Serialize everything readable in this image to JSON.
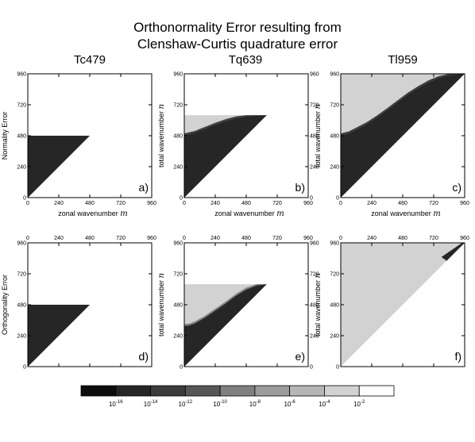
{
  "title_line1": "Orthonormality Error resulting from",
  "title_line2": "Clenshaw-Curtis quadrature error",
  "colors": {
    "cb": [
      "#0d0d0d",
      "#262626",
      "#3c3c3c",
      "#575757",
      "#808080",
      "#9c9c9c",
      "#b6b6b6",
      "#d2d2d2",
      "#ffffff"
    ]
  },
  "colorbar": {
    "labels": [
      {
        "base": "10",
        "exp": "-16"
      },
      {
        "base": "10",
        "exp": "-14"
      },
      {
        "base": "10",
        "exp": "-12"
      },
      {
        "base": "10",
        "exp": "-10"
      },
      {
        "base": "10",
        "exp": "-8"
      },
      {
        "base": "10",
        "exp": "-6"
      },
      {
        "base": "10",
        "exp": "-4"
      },
      {
        "base": "10",
        "exp": "-2"
      }
    ]
  },
  "chart_data": {
    "type": "heatmap",
    "title": "Orthonormality Error resulting from Clenshaw-Curtis quadrature error",
    "columns": [
      "Tc479",
      "Tq639",
      "Tl959"
    ],
    "rows": [
      "Normality Error",
      "Orthogonality Error"
    ],
    "x_label_text": "zonal wavenumber",
    "x_label_symbol": "m",
    "y_label_text": "total wavenumber",
    "y_label_symbol": "n",
    "xlim": [
      0,
      960
    ],
    "ylim": [
      0,
      960
    ],
    "ticks": [
      "0",
      "240",
      "480",
      "720",
      "960"
    ],
    "tick_values": [
      0,
      240,
      480,
      720,
      960
    ],
    "panels": [
      {
        "id": "a",
        "label": "a)",
        "truncation": 479,
        "boundary": [
          [
            0,
            479
          ],
          [
            479,
            479
          ]
        ],
        "upper_level": 1,
        "lower_level": 1,
        "mixed_level": 1
      },
      {
        "id": "b",
        "label": "b)",
        "truncation": 639,
        "boundary": [
          [
            0,
            484
          ],
          [
            80,
            502
          ],
          [
            160,
            534
          ],
          [
            240,
            566
          ],
          [
            320,
            594
          ],
          [
            400,
            615
          ],
          [
            480,
            630
          ],
          [
            560,
            638
          ],
          [
            639,
            639
          ]
        ],
        "upper_level": 7,
        "lower_level": 1,
        "mixed_level": 2
      },
      {
        "id": "c",
        "label": "c)",
        "truncation": 959,
        "boundary": [
          [
            0,
            484
          ],
          [
            60,
            498
          ],
          [
            120,
            528
          ],
          [
            200,
            570
          ],
          [
            280,
            622
          ],
          [
            360,
            680
          ],
          [
            440,
            740
          ],
          [
            520,
            800
          ],
          [
            600,
            850
          ],
          [
            680,
            895
          ],
          [
            760,
            928
          ],
          [
            840,
            949
          ],
          [
            920,
            958
          ],
          [
            959,
            959
          ]
        ],
        "upper_level": 7,
        "lower_level": 1,
        "mixed_level": 2
      },
      {
        "id": "d",
        "label": "d)",
        "truncation": 479,
        "boundary": [
          [
            0,
            479
          ],
          [
            479,
            479
          ]
        ],
        "upper_level": 1,
        "lower_level": 1,
        "mixed_level": 1
      },
      {
        "id": "e",
        "label": "e)",
        "truncation": 639,
        "boundary": [
          [
            0,
            315
          ],
          [
            40,
            320
          ],
          [
            80,
            335
          ],
          [
            160,
            380
          ],
          [
            240,
            435
          ],
          [
            320,
            490
          ],
          [
            400,
            550
          ],
          [
            480,
            598
          ],
          [
            560,
            630
          ],
          [
            639,
            639
          ]
        ],
        "upper_level": 7,
        "lower_level": 1,
        "mixed_level": 4
      },
      {
        "id": "f",
        "label": "f)",
        "truncation": 959,
        "boundary": [
          [
            0,
            0
          ],
          [
            959,
            959
          ]
        ],
        "upper_level": 7,
        "lower_level": 1,
        "mixed_level": 4,
        "dark_wedge_start": 820
      }
    ]
  }
}
